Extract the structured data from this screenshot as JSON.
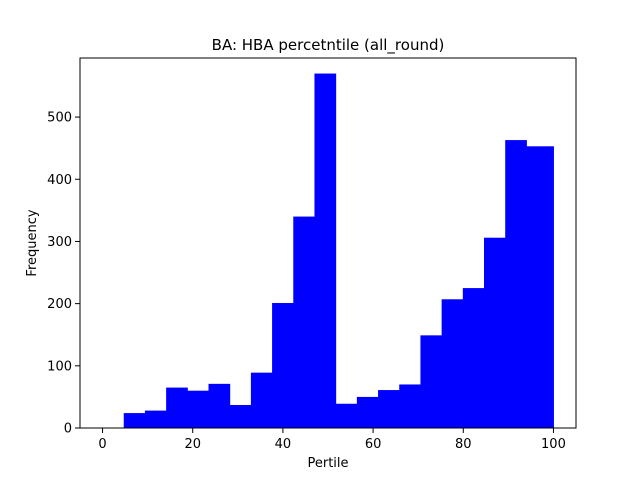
{
  "chart_data": {
    "type": "bar",
    "title": "BA: HBA percetntile (all_round)",
    "xlabel": "Pertile",
    "ylabel": "Frequency",
    "xlim": [
      -5,
      105
    ],
    "ylim": [
      0,
      595
    ],
    "xticks": [
      0,
      20,
      40,
      60,
      80,
      100
    ],
    "yticks": [
      0,
      100,
      200,
      300,
      400,
      500
    ],
    "bar_color": "#0000ff",
    "grid": false,
    "bins": [
      {
        "x0": 4.7,
        "x1": 9.4,
        "value": 24
      },
      {
        "x0": 9.4,
        "x1": 14.1,
        "value": 28
      },
      {
        "x0": 14.1,
        "x1": 18.8,
        "value": 65
      },
      {
        "x0": 18.8,
        "x1": 23.5,
        "value": 60
      },
      {
        "x0": 23.5,
        "x1": 28.2,
        "value": 71
      },
      {
        "x0": 28.2,
        "x1": 32.9,
        "value": 37
      },
      {
        "x0": 32.9,
        "x1": 37.6,
        "value": 89
      },
      {
        "x0": 37.6,
        "x1": 42.3,
        "value": 201
      },
      {
        "x0": 42.3,
        "x1": 47.0,
        "value": 340
      },
      {
        "x0": 47.0,
        "x1": 51.7,
        "value": 570
      },
      {
        "x0": 51.7,
        "x1": 56.4,
        "value": 39
      },
      {
        "x0": 56.4,
        "x1": 61.1,
        "value": 50
      },
      {
        "x0": 61.1,
        "x1": 65.8,
        "value": 61
      },
      {
        "x0": 65.8,
        "x1": 70.5,
        "value": 70
      },
      {
        "x0": 70.5,
        "x1": 75.2,
        "value": 149
      },
      {
        "x0": 75.2,
        "x1": 79.9,
        "value": 207
      },
      {
        "x0": 79.9,
        "x1": 84.6,
        "value": 225
      },
      {
        "x0": 84.6,
        "x1": 89.3,
        "value": 306
      },
      {
        "x0": 89.3,
        "x1": 94.0,
        "value": 463
      },
      {
        "x0": 94.0,
        "x1": 98.7,
        "value": 453
      },
      {
        "x0": 98.7,
        "x1": 100.0,
        "value": 453
      }
    ]
  }
}
